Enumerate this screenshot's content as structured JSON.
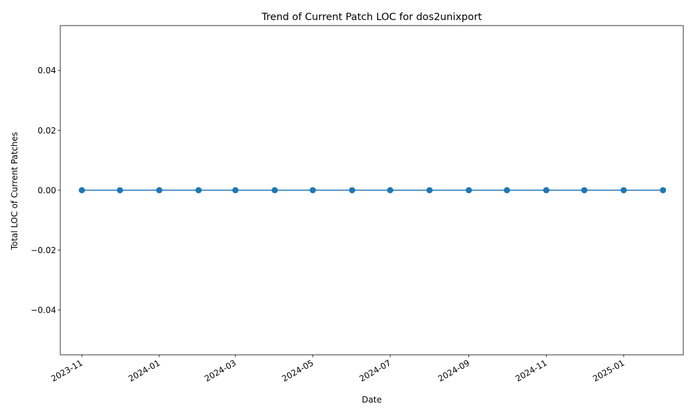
{
  "chart_data": {
    "type": "line",
    "title": "Trend of Current Patch LOC for dos2unixport",
    "xlabel": "Date",
    "ylabel": "Total LOC of Current Patches",
    "x": [
      "2023-11-01",
      "2023-12-01",
      "2024-01-01",
      "2024-02-01",
      "2024-03-01",
      "2024-04-01",
      "2024-05-01",
      "2024-06-01",
      "2024-07-01",
      "2024-08-01",
      "2024-09-01",
      "2024-10-01",
      "2024-11-01",
      "2024-12-01",
      "2025-01-01",
      "2025-02-01"
    ],
    "series": [
      {
        "values": [
          0,
          0,
          0,
          0,
          0,
          0,
          0,
          0,
          0,
          0,
          0,
          0,
          0,
          0,
          0,
          0
        ],
        "color": "#1f77b4"
      }
    ],
    "xticks": [
      "2023-11",
      "2024-01",
      "2024-03",
      "2024-05",
      "2024-07",
      "2024-09",
      "2024-11",
      "2025-01"
    ],
    "yticks": [
      "0.04",
      "0.02",
      "0.00",
      "−0.02",
      "−0.04"
    ],
    "ytick_values": [
      0.04,
      0.02,
      0.0,
      -0.02,
      -0.04
    ],
    "ylim": [
      -0.055,
      0.055
    ],
    "xlim": [
      "2023-10-15",
      "2025-02-17"
    ],
    "grid": false,
    "legend": "none"
  }
}
